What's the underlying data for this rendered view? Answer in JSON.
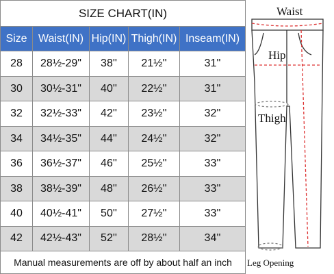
{
  "table": {
    "title": "SIZE CHART(IN)",
    "header": [
      "Size",
      "Waist(IN)",
      "Hip(IN)",
      "Thigh(IN)",
      "Inseam(IN)"
    ],
    "rows": [
      [
        "28",
        "28½-29\"",
        "38''",
        "21½''",
        "31''"
      ],
      [
        "30",
        "30½-31\"",
        "40''",
        "22½''",
        "31''"
      ],
      [
        "32",
        "32½-33\"",
        "42''",
        "23½''",
        "32''"
      ],
      [
        "34",
        "34½-35\"",
        "44''",
        "24½''",
        "32''"
      ],
      [
        "36",
        "36½-37\"",
        "46''",
        "25½''",
        "33''"
      ],
      [
        "38",
        "38½-39\"",
        "48''",
        "26½''",
        "33''"
      ],
      [
        "40",
        "40½-41\"",
        "50''",
        "27½''",
        "33''"
      ],
      [
        "42",
        "42½-43\"",
        "52''",
        "28½''",
        "34''"
      ]
    ],
    "note": "Manual measurements are off by about half an inch"
  },
  "diagram": {
    "waist": "Waist",
    "hip": "Hip",
    "thigh": "Thigh",
    "leg_opening": "Leg Opening"
  }
}
